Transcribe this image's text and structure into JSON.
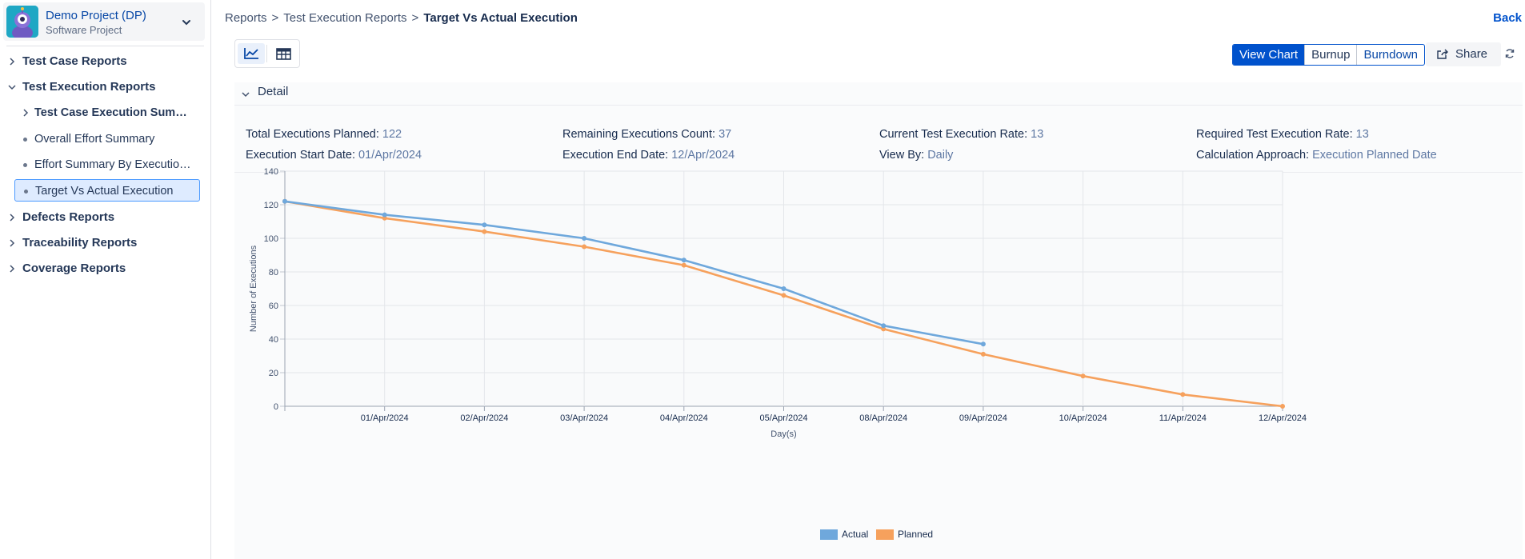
{
  "project": {
    "name": "Demo Project (DP)",
    "type": "Software Project"
  },
  "sidebar": {
    "items": [
      {
        "label": "Test Case Reports"
      },
      {
        "label": "Test Execution Reports"
      },
      {
        "label": "Defects Reports"
      },
      {
        "label": "Traceability Reports"
      },
      {
        "label": "Coverage Reports"
      }
    ],
    "sub_items": [
      {
        "label": "Test Case Execution Summ..."
      },
      {
        "label": "Overall Effort Summary"
      },
      {
        "label": "Effort Summary By Execution..."
      },
      {
        "label": "Target Vs Actual Execution"
      }
    ]
  },
  "breadcrumb": {
    "items": [
      "Reports",
      "Test Execution Reports"
    ],
    "current": "Target Vs Actual Execution",
    "separator": ">"
  },
  "header": {
    "back_label": "Back"
  },
  "toolbar": {
    "segments": [
      "View Chart",
      "Burnup",
      "Burndown"
    ],
    "active_segment": "View Chart",
    "share_label": "Share"
  },
  "detail": {
    "title": "Detail",
    "stats": [
      {
        "label": "Total Executions Planned:",
        "value": "122"
      },
      {
        "label": "Remaining Executions Count:",
        "value": "37"
      },
      {
        "label": "Current Test Execution Rate:",
        "value": "13"
      },
      {
        "label": "Required Test Execution Rate:",
        "value": "13"
      },
      {
        "label": "Execution Start Date:",
        "value": "01/Apr/2024"
      },
      {
        "label": "Execution End Date:",
        "value": "12/Apr/2024"
      },
      {
        "label": "View By:",
        "value": "Daily"
      },
      {
        "label": "Calculation Approach:",
        "value": "Execution Planned Date"
      }
    ]
  },
  "colors": {
    "actual": "#6fa8dc",
    "planned": "#f6a15d",
    "accent": "#0052cc"
  },
  "chart_data": {
    "type": "line",
    "xlabel": "Day(s)",
    "ylabel": "Number of Executions",
    "ylim": [
      0,
      140
    ],
    "yticks": [
      0,
      20,
      40,
      60,
      80,
      100,
      120,
      140
    ],
    "categories": [
      "",
      "01/Apr/2024",
      "02/Apr/2024",
      "03/Apr/2024",
      "04/Apr/2024",
      "05/Apr/2024",
      "08/Apr/2024",
      "09/Apr/2024",
      "10/Apr/2024",
      "11/Apr/2024",
      "12/Apr/2024"
    ],
    "series": [
      {
        "name": "Actual",
        "values": [
          122,
          114,
          108,
          100,
          87,
          70,
          48,
          37,
          null,
          null,
          null
        ]
      },
      {
        "name": "Planned",
        "values": [
          122,
          112,
          104,
          95,
          84,
          66,
          46,
          31,
          18,
          7,
          0
        ]
      }
    ],
    "grid": true,
    "legend": "bottom"
  }
}
